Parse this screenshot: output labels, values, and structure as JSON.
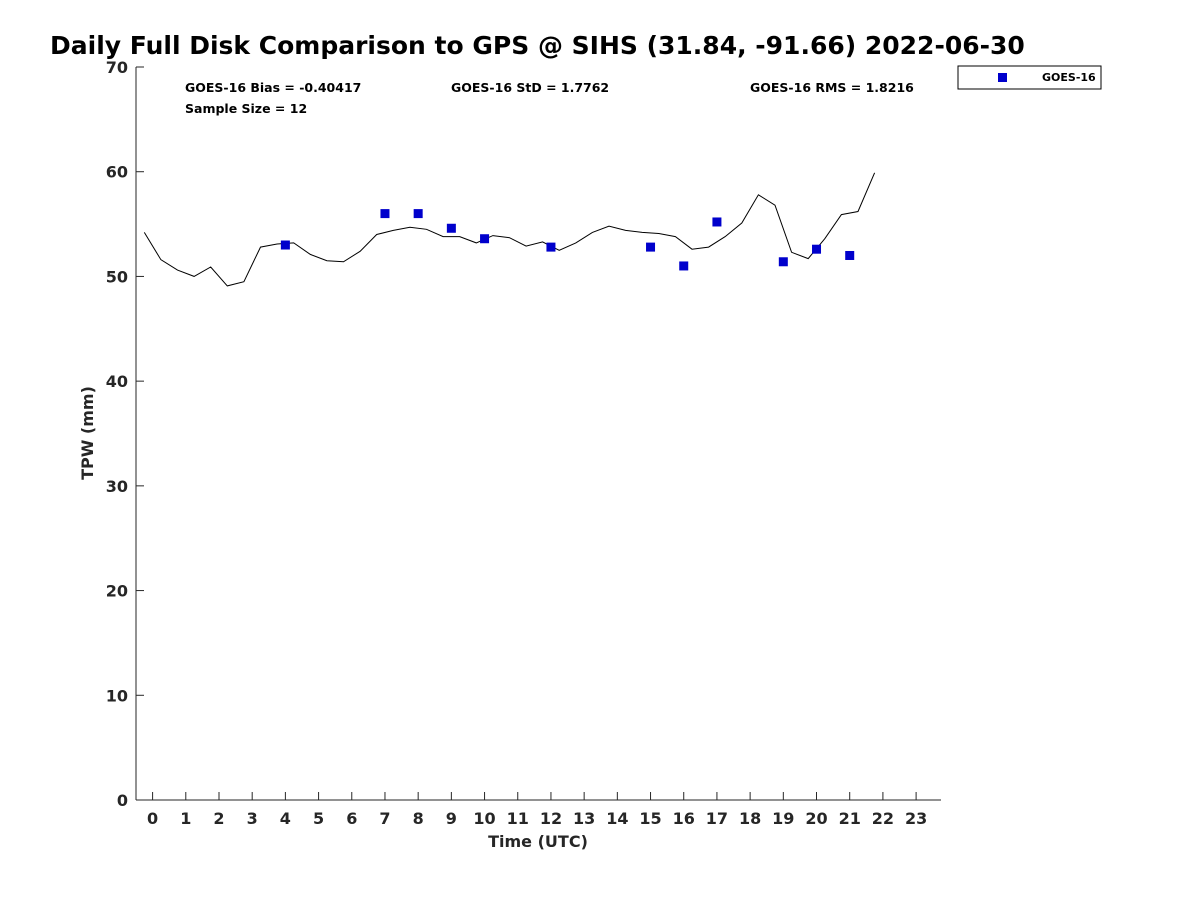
{
  "chart_data": {
    "type": "scatter",
    "title": "Daily Full Disk Comparison to GPS @ SIHS (31.84, -91.66) 2022-06-30",
    "xlabel": "Time (UTC)",
    "ylabel": "TPW (mm)",
    "xlim": [
      -0.5,
      23.75
    ],
    "ylim": [
      0,
      70
    ],
    "x_ticks": [
      0,
      1,
      2,
      3,
      4,
      5,
      6,
      7,
      8,
      9,
      10,
      11,
      12,
      13,
      14,
      15,
      16,
      17,
      18,
      19,
      20,
      21,
      22,
      23
    ],
    "y_ticks": [
      0,
      10,
      20,
      30,
      40,
      50,
      60,
      70
    ],
    "grid": false,
    "legend_position": "outside-top-right",
    "stats": {
      "bias": "GOES-16 Bias = -0.40417",
      "std": "GOES-16 StD = 1.7762",
      "rms": "GOES-16 RMS = 1.8216",
      "sample_size": "Sample Size = 12"
    },
    "series": [
      {
        "name": "GPS",
        "kind": "line",
        "color": "#000000",
        "x": [
          -0.25,
          0.25,
          0.75,
          1.25,
          1.75,
          2.25,
          2.75,
          3.25,
          3.75,
          4.25,
          4.75,
          5.25,
          5.75,
          6.25,
          6.75,
          7.25,
          7.75,
          8.25,
          8.75,
          9.25,
          9.75,
          10.25,
          10.75,
          11.25,
          11.75,
          12.25,
          12.75,
          13.25,
          13.75,
          14.25,
          14.75,
          15.25,
          15.75,
          16.25,
          16.75,
          17.25,
          17.75,
          18.25,
          18.75,
          19.25,
          19.75,
          20.25,
          20.75,
          21.25,
          21.75
        ],
        "y": [
          54.2,
          51.6,
          50.6,
          50.0,
          50.9,
          49.1,
          49.5,
          52.8,
          53.1,
          53.2,
          52.1,
          51.5,
          51.4,
          52.4,
          54.0,
          54.4,
          54.7,
          54.5,
          53.8,
          53.8,
          53.2,
          53.9,
          53.7,
          52.9,
          53.3,
          52.5,
          53.2,
          54.2,
          54.8,
          54.4,
          54.2,
          54.1,
          53.8,
          52.6,
          52.8,
          53.8,
          55.1,
          57.8,
          56.8,
          52.3,
          51.7,
          53.6,
          55.9,
          56.2,
          59.9
        ]
      },
      {
        "name": "GOES-16",
        "kind": "scatter",
        "color": "#0000cc",
        "x": [
          4,
          7,
          8,
          9,
          10,
          12,
          15,
          16,
          17,
          19,
          20,
          21
        ],
        "y": [
          53.0,
          56.0,
          56.0,
          54.6,
          53.6,
          52.8,
          52.8,
          51.0,
          55.2,
          51.4,
          52.6,
          52.0
        ]
      }
    ]
  }
}
